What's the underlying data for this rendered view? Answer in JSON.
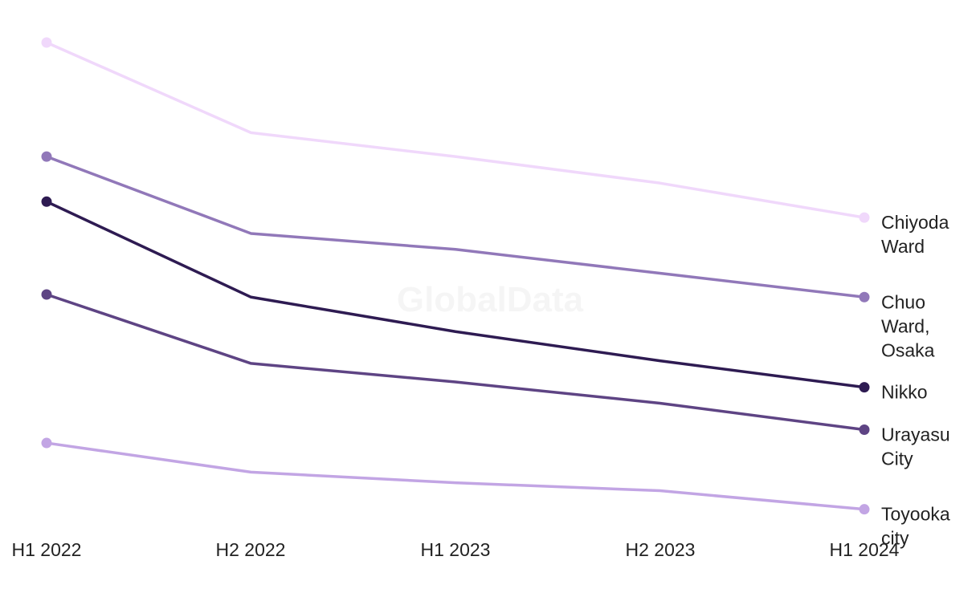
{
  "watermark": "GlobalData",
  "chart_data": {
    "type": "line",
    "x": [
      "H1 2022",
      "H2 2022",
      "H1 2023",
      "H2 2023",
      "H1 2024"
    ],
    "ylim": [
      0,
      100
    ],
    "grid": false,
    "legend": "direct labels at line ends (right)",
    "series": [
      {
        "name": "Chiyoda Ward",
        "color": "#f0d8fb",
        "values": [
          100,
          83,
          78.5,
          73.5,
          67
        ]
      },
      {
        "name": "Chuo Ward, Osaka",
        "color": "#9178b9",
        "values": [
          78.5,
          64,
          61,
          56.5,
          52
        ]
      },
      {
        "name": "Nikko",
        "color": "#2e1b52",
        "values": [
          70,
          52,
          45.5,
          40,
          35
        ]
      },
      {
        "name": "Urayasu City",
        "color": "#5e4484",
        "values": [
          52.5,
          39.5,
          36,
          32,
          27
        ]
      },
      {
        "name": "Toyooka city",
        "color": "#c2a5e4",
        "values": [
          24.5,
          19,
          17,
          15.5,
          12
        ]
      }
    ]
  }
}
